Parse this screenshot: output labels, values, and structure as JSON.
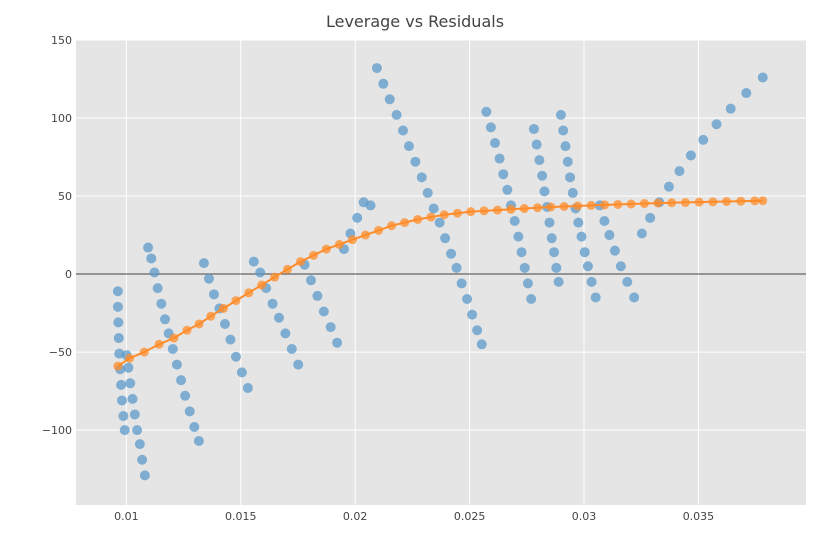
{
  "chart_data": {
    "type": "scatter",
    "title": "Leverage vs Residuals",
    "xlabel": "",
    "ylabel": "",
    "xlim": [
      0.0078,
      0.0397
    ],
    "ylim": [
      -148,
      150
    ],
    "grid": true,
    "legend": "none",
    "colors": {
      "plot_bg": "#e5e5e5",
      "grid": "#ffffff",
      "zero_line": "#444444",
      "points": "#5b9ac9",
      "fit": "#ff8c2a"
    },
    "x_ticks": [
      {
        "value": 0.01,
        "label": "0.01"
      },
      {
        "value": 0.015,
        "label": "0.015"
      },
      {
        "value": 0.02,
        "label": "0.02"
      },
      {
        "value": 0.025,
        "label": "0.025"
      },
      {
        "value": 0.03,
        "label": "0.03"
      },
      {
        "value": 0.035,
        "label": "0.035"
      }
    ],
    "y_ticks": [
      {
        "value": 150,
        "label": "150"
      },
      {
        "value": 100,
        "label": "100"
      },
      {
        "value": 50,
        "label": "50"
      },
      {
        "value": 0,
        "label": "0"
      },
      {
        "value": -50,
        "label": "−50"
      },
      {
        "value": -100,
        "label": "−100"
      }
    ],
    "series": [
      {
        "kind": "points",
        "x": [
          0.00963,
          0.00963,
          0.00965,
          0.00967,
          0.00969,
          0.00973,
          0.00977,
          0.00981,
          0.00987,
          0.00993,
          0.01001,
          0.01009,
          0.01017,
          0.01027,
          0.01037,
          0.01047,
          0.01059,
          0.01069,
          0.01081,
          0.01095,
          0.01109,
          0.01123,
          0.01137,
          0.01153,
          0.01169,
          0.01185,
          0.01203,
          0.01221,
          0.01239,
          0.01257,
          0.01277,
          0.01297,
          0.01317,
          0.01339,
          0.01361,
          0.01383,
          0.01407,
          0.01431,
          0.01455,
          0.01479,
          0.01505,
          0.01531,
          0.01557,
          0.01585,
          0.01611,
          0.01639,
          0.01667,
          0.01695,
          0.01723,
          0.01751,
          0.01779,
          0.01807,
          0.01835,
          0.01863,
          0.01893,
          0.01921,
          0.01951,
          0.01979,
          0.02009,
          0.02037,
          0.02067,
          0.02095,
          0.02123,
          0.02151,
          0.02181,
          0.02209,
          0.02235,
          0.02263,
          0.02291,
          0.02317,
          0.02343,
          0.02369,
          0.02393,
          0.02419,
          0.02443,
          0.02465,
          0.02489,
          0.02511,
          0.02533,
          0.02553,
          0.02573,
          0.02593,
          0.02611,
          0.02631,
          0.02647,
          0.02665,
          0.02681,
          0.02697,
          0.02713,
          0.02727,
          0.02741,
          0.02755,
          0.02769,
          0.02781,
          0.02793,
          0.02805,
          0.02817,
          0.02827,
          0.02839,
          0.02849,
          0.02859,
          0.02869,
          0.02879,
          0.02889,
          0.02899,
          0.02909,
          0.02919,
          0.02929,
          0.02939,
          0.02951,
          0.02963,
          0.02975,
          0.02989,
          0.03003,
          0.03017,
          0.03033,
          0.03051,
          0.03069,
          0.03089,
          0.03111,
          0.03135,
          0.03161,
          0.03189,
          0.03219,
          0.03253,
          0.03289,
          0.03329,
          0.03371,
          0.03417,
          0.03467,
          0.03521,
          0.03579,
          0.03641,
          0.03709,
          0.03781
        ],
        "y": [
          -11,
          -21,
          -31,
          -41,
          -51,
          -61,
          -71,
          -81,
          -91,
          -100,
          -52,
          -60,
          -70,
          -80,
          -90,
          -100,
          -109,
          -119,
          -129,
          17,
          10,
          1,
          -9,
          -19,
          -29,
          -38,
          -48,
          -58,
          -68,
          -78,
          -88,
          -98,
          -107,
          7,
          -3,
          -13,
          -22,
          -32,
          -42,
          -53,
          -63,
          -73,
          8,
          1,
          -9,
          -19,
          -28,
          -38,
          -48,
          -58,
          6,
          -4,
          -14,
          -24,
          -34,
          -44,
          16,
          26,
          36,
          46,
          44,
          132,
          122,
          112,
          102,
          92,
          82,
          72,
          62,
          52,
          42,
          33,
          23,
          13,
          4,
          -6,
          -16,
          -26,
          -36,
          -45,
          104,
          94,
          84,
          74,
          64,
          54,
          44,
          34,
          24,
          14,
          4,
          -6,
          -16,
          93,
          83,
          73,
          63,
          53,
          43,
          33,
          23,
          14,
          4,
          -5,
          102,
          92,
          82,
          72,
          62,
          52,
          42,
          33,
          24,
          14,
          5,
          -5,
          -15,
          44,
          34,
          25,
          15,
          5,
          -5,
          -15,
          26,
          36,
          46,
          56,
          66,
          76,
          86,
          96,
          106,
          116,
          126
        ],
        "color": "#5b9ac9"
      },
      {
        "kind": "fit",
        "x": [
          0.00963,
          0.01014,
          0.01078,
          0.01143,
          0.01208,
          0.01265,
          0.01318,
          0.01369,
          0.01424,
          0.01479,
          0.01535,
          0.01591,
          0.01648,
          0.01704,
          0.01761,
          0.01818,
          0.01874,
          0.01931,
          0.01988,
          0.02045,
          0.02102,
          0.02159,
          0.02216,
          0.02273,
          0.02331,
          0.02389,
          0.02447,
          0.02505,
          0.02563,
          0.02622,
          0.02681,
          0.02739,
          0.02797,
          0.02855,
          0.02913,
          0.02972,
          0.03031,
          0.0309,
          0.03148,
          0.03206,
          0.03264,
          0.03323,
          0.03383,
          0.03443,
          0.03503,
          0.03563,
          0.03623,
          0.03685,
          0.03746,
          0.03781
        ],
        "y": [
          -59,
          -54,
          -50,
          -45,
          -41,
          -36,
          -32,
          -27,
          -22,
          -17,
          -12,
          -7,
          -2,
          3,
          8,
          12,
          16,
          19,
          22,
          25,
          28,
          31,
          33,
          35,
          36.5,
          38,
          39,
          40,
          40.5,
          41,
          41.5,
          42,
          42.5,
          43,
          43.3,
          43.6,
          44,
          44.3,
          44.6,
          44.9,
          45.2,
          45.5,
          45.7,
          45.9,
          46.1,
          46.3,
          46.5,
          46.7,
          46.9,
          47
        ],
        "color": "#ff8c2a"
      }
    ]
  }
}
